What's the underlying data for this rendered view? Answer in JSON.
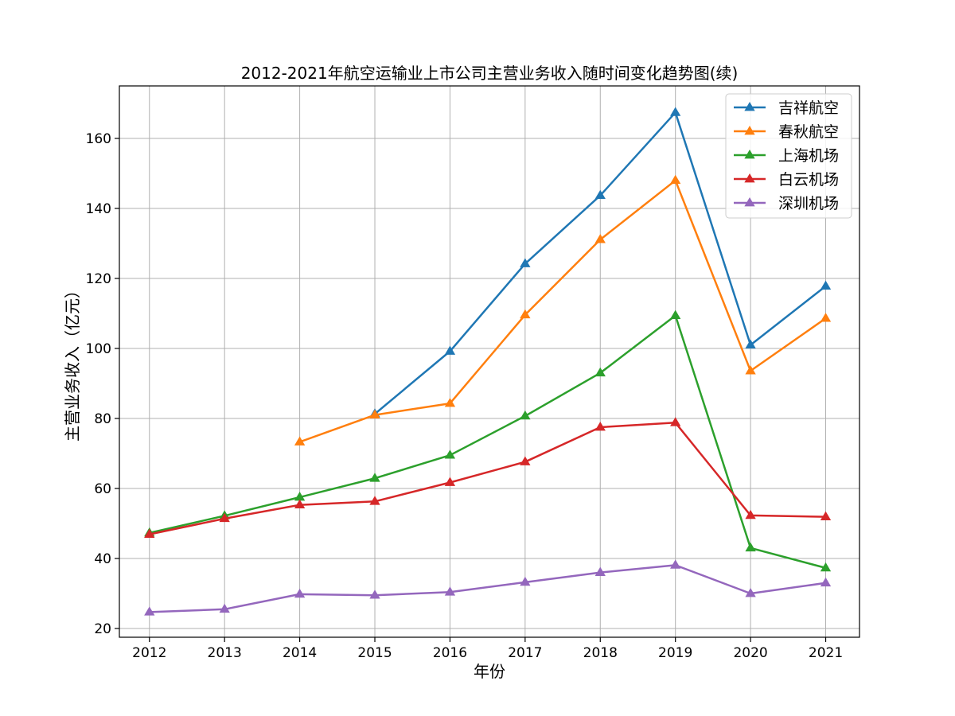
{
  "chart_data": {
    "type": "line",
    "title": "2012-2021年航空运输业上市公司主营业务收入随时间变化趋势图(续)",
    "xlabel": "年份",
    "ylabel": "主营业务收入（亿元）",
    "x": [
      2012,
      2013,
      2014,
      2015,
      2016,
      2017,
      2018,
      2019,
      2020,
      2021
    ],
    "xlim": [
      2011.6,
      2021.45
    ],
    "ylim": [
      17.5,
      175
    ],
    "yticks": [
      20,
      40,
      60,
      80,
      100,
      120,
      140,
      160
    ],
    "grid": true,
    "legend_position": "upper-right",
    "marker": "triangle-up",
    "series": [
      {
        "name": "吉祥航空",
        "color": "#1f77b4",
        "values": [
          null,
          null,
          null,
          81.3,
          99.2,
          124.2,
          143.7,
          167.4,
          101.0,
          117.8
        ]
      },
      {
        "name": "春秋航空",
        "color": "#ff7f0e",
        "values": [
          null,
          null,
          73.3,
          81.0,
          84.3,
          109.6,
          131.1,
          148.0,
          93.6,
          108.6
        ]
      },
      {
        "name": "上海机场",
        "color": "#2ca02c",
        "values": [
          47.3,
          52.2,
          57.5,
          62.9,
          69.5,
          80.7,
          93.0,
          109.4,
          43.0,
          37.3
        ]
      },
      {
        "name": "白云机场",
        "color": "#d62728",
        "values": [
          46.9,
          51.4,
          55.3,
          56.3,
          61.7,
          67.6,
          77.5,
          78.8,
          52.3,
          51.9
        ]
      },
      {
        "name": "深圳机场",
        "color": "#9467bd",
        "values": [
          24.7,
          25.5,
          29.8,
          29.5,
          30.4,
          33.2,
          36.0,
          38.1,
          30.0,
          33.0
        ]
      }
    ]
  }
}
